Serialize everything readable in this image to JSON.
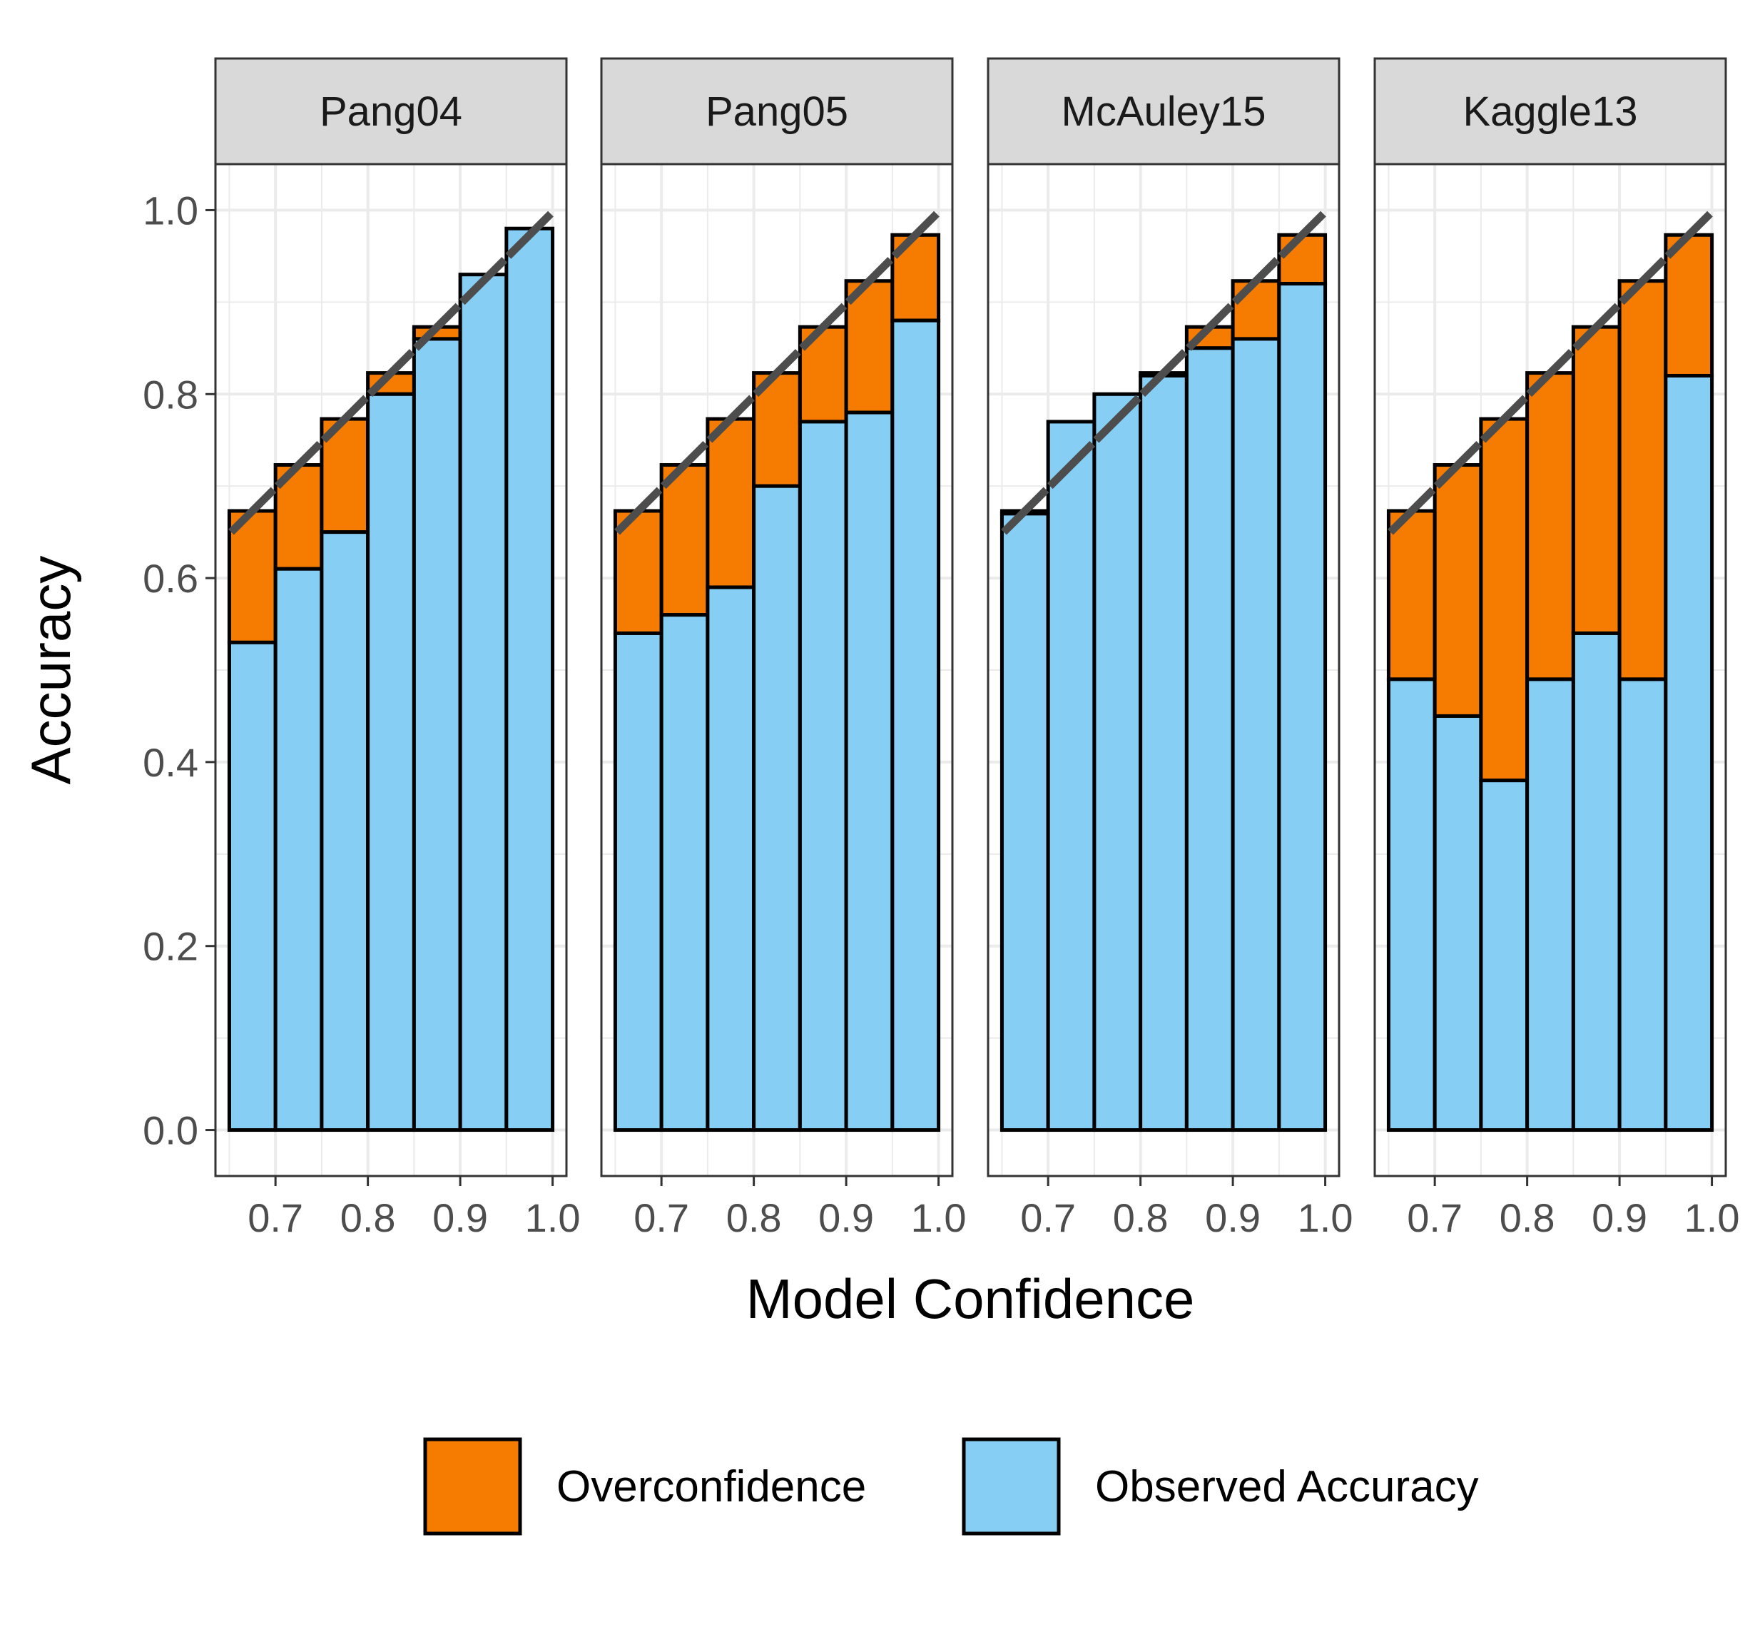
{
  "chart_data": {
    "type": "bar",
    "subtype": "stacked-bar-facets",
    "xlabel": "Model Confidence",
    "ylabel": "Accuracy",
    "ylim": [
      -0.05,
      1.05
    ],
    "xlim": [
      0.635,
      1.015
    ],
    "y_ticks": [
      "0.0",
      "0.2",
      "0.4",
      "0.6",
      "0.8",
      "1.0"
    ],
    "x_ticks": [
      "0.7",
      "0.8",
      "0.9",
      "1.0"
    ],
    "bin_width": 0.05,
    "bin_centers": [
      0.675,
      0.725,
      0.775,
      0.825,
      0.875,
      0.925,
      0.975
    ],
    "confidence": [
      0.673,
      0.723,
      0.773,
      0.823,
      0.873,
      0.923,
      0.973
    ],
    "grid": true,
    "legend_position": "bottom",
    "colors": {
      "overconfidence": "#F57C00",
      "observed": "#87CEF5",
      "outline": "#000000",
      "diagonal": "#4d4d4d",
      "strip_bg": "#d9d9d9",
      "grid": "#ebebeb"
    },
    "series": [
      {
        "name": "Overconfidence",
        "color": "#F57C00"
      },
      {
        "name": "Observed Accuracy",
        "color": "#87CEF5"
      }
    ],
    "facets": [
      {
        "name": "Pang04",
        "observed": [
          0.53,
          0.61,
          0.65,
          0.8,
          0.86,
          0.93,
          0.98
        ],
        "bar_top": [
          0.673,
          0.723,
          0.773,
          0.823,
          0.873,
          0.93,
          0.98
        ]
      },
      {
        "name": "Pang05",
        "observed": [
          0.54,
          0.56,
          0.59,
          0.7,
          0.77,
          0.78,
          0.88
        ],
        "bar_top": [
          0.673,
          0.723,
          0.773,
          0.823,
          0.873,
          0.923,
          0.973
        ]
      },
      {
        "name": "McAuley15",
        "observed": [
          0.67,
          0.77,
          0.8,
          0.82,
          0.85,
          0.86,
          0.92
        ],
        "bar_top": [
          0.673,
          0.77,
          0.8,
          0.823,
          0.873,
          0.923,
          0.973
        ]
      },
      {
        "name": "Kaggle13",
        "observed": [
          0.49,
          0.45,
          0.38,
          0.49,
          0.54,
          0.49,
          0.82
        ],
        "bar_top": [
          0.673,
          0.723,
          0.773,
          0.823,
          0.873,
          0.923,
          0.973
        ]
      }
    ]
  }
}
